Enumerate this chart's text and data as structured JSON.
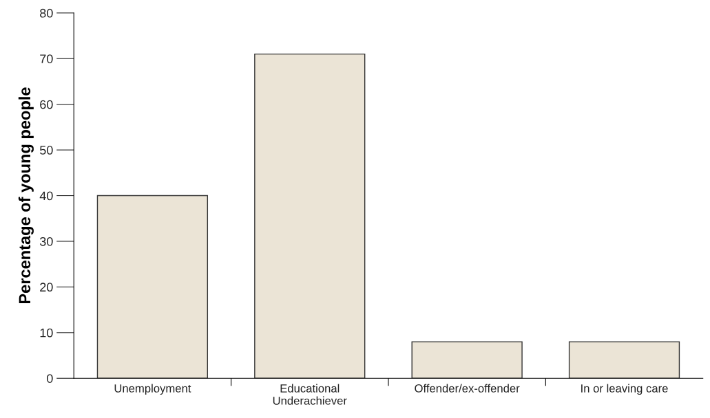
{
  "chart_data": {
    "type": "bar",
    "ylabel": "Percentage of young people",
    "categories": [
      "Unemployment",
      "Educational\nUnderachiever",
      "Offender/ex-offender",
      "In or leaving care"
    ],
    "values": [
      40,
      71,
      8,
      8
    ],
    "color": "#ebe4d6",
    "ylim": [
      0,
      80
    ],
    "yticks": [
      0,
      10,
      20,
      30,
      40,
      50,
      60,
      70,
      80
    ],
    "grid": false,
    "legend": false
  }
}
